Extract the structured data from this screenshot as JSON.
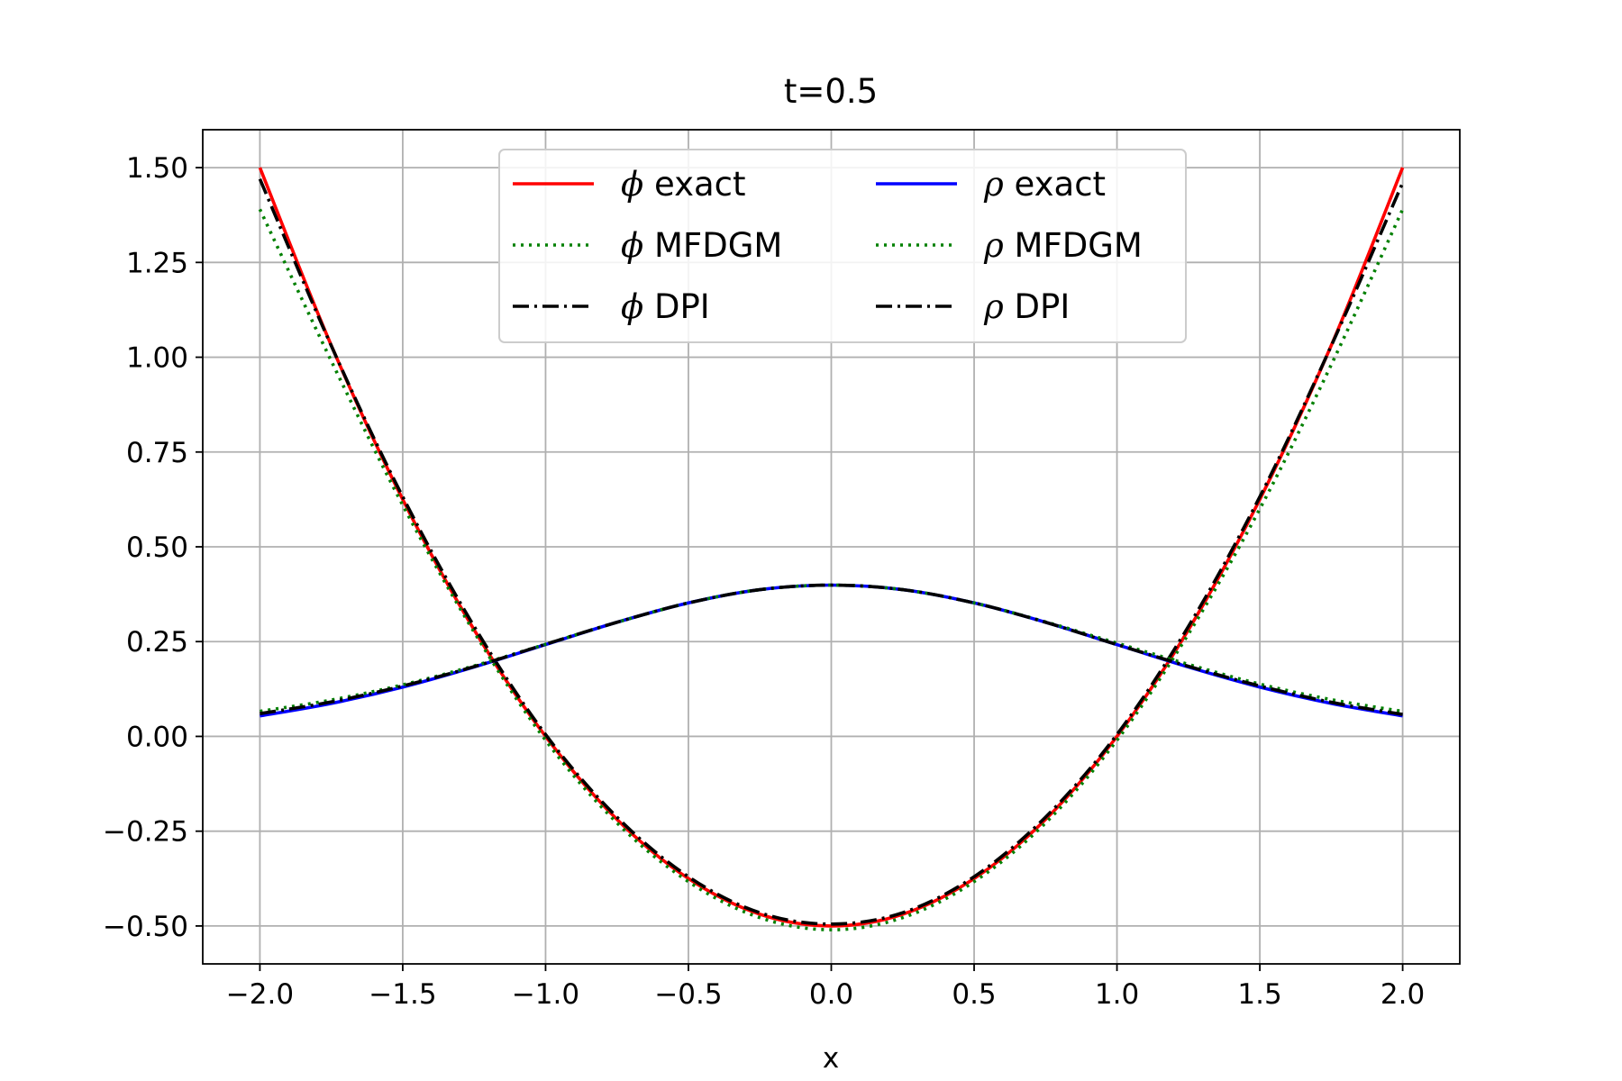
{
  "chart_data": {
    "type": "line",
    "title": "t=0.5",
    "xlabel": "x",
    "ylabel": "",
    "xlim": [
      -2.2,
      2.2
    ],
    "ylim": [
      -0.6,
      1.6
    ],
    "xticks": [
      -2.0,
      -1.5,
      -1.0,
      -0.5,
      0.0,
      0.5,
      1.0,
      1.5,
      2.0
    ],
    "xtick_labels": [
      "−2.0",
      "−1.5",
      "−1.0",
      "−0.5",
      "0.0",
      "0.5",
      "1.0",
      "1.5",
      "2.0"
    ],
    "yticks": [
      -0.5,
      -0.25,
      0.0,
      0.25,
      0.5,
      0.75,
      1.0,
      1.25,
      1.5
    ],
    "ytick_labels": [
      "−0.50",
      "−0.25",
      "0.00",
      "0.25",
      "0.50",
      "0.75",
      "1.00",
      "1.25",
      "1.50"
    ],
    "grid": true,
    "legend_position": "upper center",
    "legend_columns": 2,
    "x": [
      -2.0,
      -1.75,
      -1.5,
      -1.25,
      -1.0,
      -0.75,
      -0.5,
      -0.25,
      0.0,
      0.25,
      0.5,
      0.75,
      1.0,
      1.25,
      1.5,
      1.75,
      2.0
    ],
    "series": [
      {
        "name": "ϕ exact",
        "symbol": "ϕ",
        "label": "exact",
        "color": "#ff0000",
        "style": "solid",
        "values": [
          1.5,
          1.031,
          0.625,
          0.281,
          0.0,
          -0.219,
          -0.375,
          -0.469,
          -0.5,
          -0.469,
          -0.375,
          -0.219,
          0.0,
          0.281,
          0.625,
          1.031,
          1.5
        ]
      },
      {
        "name": "ϕ MFDGM",
        "symbol": "ϕ",
        "label": "MFDGM",
        "color": "#008000",
        "style": "dotted",
        "values": [
          1.39,
          0.99,
          0.61,
          0.275,
          -0.01,
          -0.228,
          -0.383,
          -0.478,
          -0.51,
          -0.478,
          -0.383,
          -0.228,
          -0.01,
          0.27,
          0.6,
          0.98,
          1.39
        ]
      },
      {
        "name": "ϕ DPI",
        "symbol": "ϕ",
        "label": "DPI",
        "color": "#000000",
        "style": "dashdot",
        "values": [
          1.47,
          1.03,
          0.632,
          0.29,
          0.005,
          -0.213,
          -0.37,
          -0.465,
          -0.495,
          -0.465,
          -0.37,
          -0.213,
          0.005,
          0.29,
          0.632,
          1.03,
          1.46
        ]
      },
      {
        "name": "ρ exact",
        "symbol": "ρ",
        "label": "exact",
        "color": "#0000ff",
        "style": "solid",
        "values": [
          0.054,
          0.087,
          0.13,
          0.183,
          0.242,
          0.301,
          0.352,
          0.387,
          0.399,
          0.387,
          0.352,
          0.301,
          0.242,
          0.183,
          0.13,
          0.087,
          0.054
        ]
      },
      {
        "name": "ρ MFDGM",
        "symbol": "ρ",
        "label": "MFDGM",
        "color": "#008000",
        "style": "dotted",
        "values": [
          0.066,
          0.096,
          0.136,
          0.186,
          0.243,
          0.301,
          0.352,
          0.387,
          0.399,
          0.387,
          0.352,
          0.302,
          0.246,
          0.19,
          0.138,
          0.097,
          0.066
        ]
      },
      {
        "name": "ρ DPI",
        "symbol": "ρ",
        "label": "DPI",
        "color": "#000000",
        "style": "dashdot",
        "values": [
          0.06,
          0.091,
          0.133,
          0.184,
          0.243,
          0.301,
          0.352,
          0.387,
          0.399,
          0.387,
          0.352,
          0.301,
          0.242,
          0.185,
          0.133,
          0.09,
          0.058
        ]
      }
    ]
  }
}
